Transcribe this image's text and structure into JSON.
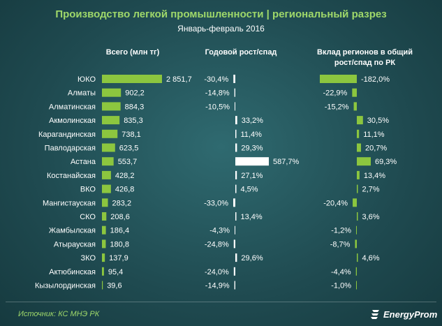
{
  "title": "Производство легкой промышленности | региональный разрез",
  "subtitle": "Январь-февраль 2016",
  "source": "Источник: КС МНЭ РК",
  "brand": "EnergyProm",
  "colors": {
    "bar_green": "#8cc63f",
    "bar_white": "#ffffff",
    "title_green": "#9fd86a"
  },
  "chart_data": {
    "type": "bar",
    "columns": [
      {
        "key": "total",
        "header": "Всего (млн тг)"
      },
      {
        "key": "growth",
        "header": "Годовой рост/спад"
      },
      {
        "key": "contribution",
        "header": "Вклад регионов в общий рост/спад по РК"
      }
    ],
    "categories": [
      "ЮКО",
      "Алматы",
      "Алматинская",
      "Акмолинская",
      "Карагандинская",
      "Павлодарская",
      "Астана",
      "Костанайская",
      "ВКО",
      "Мангистауская",
      "СКО",
      "Жамбылская",
      "Атырауская",
      "ЗКО",
      "Актюбинская",
      "Кызылординская"
    ],
    "series": [
      {
        "name": "Всего (млн тг)",
        "values": [
          2851.7,
          902.2,
          884.3,
          835.3,
          738.1,
          623.5,
          553.7,
          428.2,
          426.8,
          283.2,
          208.6,
          186.4,
          180.8,
          137.9,
          95.4,
          39.6
        ],
        "labels": [
          "2 851,7",
          "902,2",
          "884,3",
          "835,3",
          "738,1",
          "623,5",
          "553,7",
          "428,2",
          "426,8",
          "283,2",
          "208,6",
          "186,4",
          "180,8",
          "137,9",
          "95,4",
          "39,6"
        ]
      },
      {
        "name": "Годовой рост/спад",
        "values": [
          -30.4,
          -14.8,
          -10.5,
          33.2,
          11.4,
          29.3,
          587.7,
          27.1,
          4.5,
          -33.0,
          13.4,
          -4.3,
          -24.8,
          29.6,
          -24.0,
          -14.9
        ],
        "labels": [
          "-30,4%",
          "-14,8%",
          "-10,5%",
          "33,2%",
          "11,4%",
          "29,3%",
          "587,7%",
          "27,1%",
          "4,5%",
          "-33,0%",
          "13,4%",
          "-4,3%",
          "-24,8%",
          "29,6%",
          "-24,0%",
          "-14,9%"
        ]
      },
      {
        "name": "Вклад регионов в общий рост/спад по РК",
        "values": [
          -182.0,
          -22.9,
          -15.2,
          30.5,
          11.1,
          20.7,
          69.3,
          13.4,
          2.7,
          -20.4,
          3.6,
          -1.2,
          -8.7,
          4.6,
          -4.4,
          -1.0
        ],
        "labels": [
          "-182,0%",
          "-22,9%",
          "-15,2%",
          "30,5%",
          "11,1%",
          "20,7%",
          "69,3%",
          "13,4%",
          "2,7%",
          "-20,4%",
          "3,6%",
          "-1,2%",
          "-8,7%",
          "4,6%",
          "-4,4%",
          "-1,0%"
        ]
      }
    ]
  }
}
